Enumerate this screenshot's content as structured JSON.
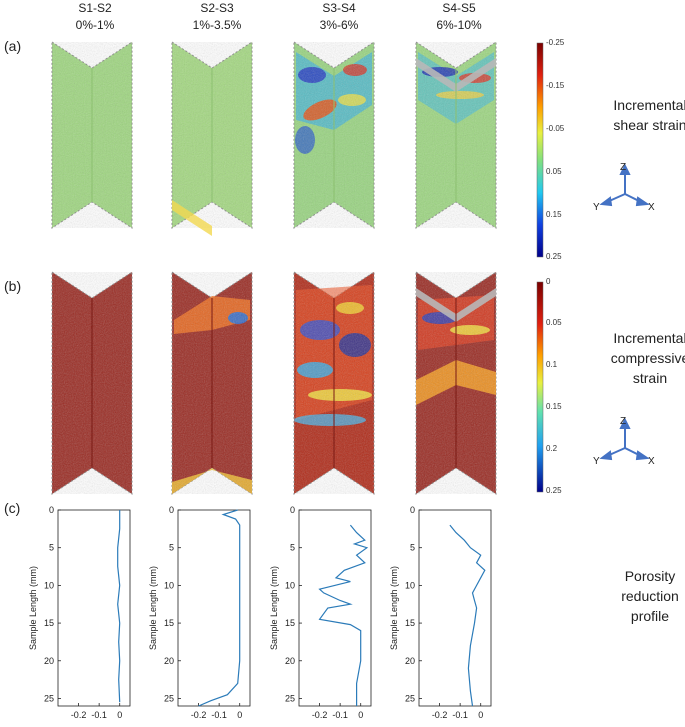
{
  "columns": [
    {
      "id": "S1-S2",
      "range": "0%-1%"
    },
    {
      "id": "S2-S3",
      "range": "1%-3.5%"
    },
    {
      "id": "S3-S4",
      "range": "3%-6%"
    },
    {
      "id": "S4-S5",
      "range": "6%-10%"
    }
  ],
  "rows": [
    {
      "label": "(a)",
      "desc": [
        "Incremental",
        "shear strain"
      ]
    },
    {
      "label": "(b)",
      "desc": [
        "Incremental",
        "compressive",
        "strain"
      ]
    },
    {
      "label": "(c)",
      "desc": [
        "Porosity",
        "reduction",
        "profile"
      ]
    }
  ],
  "colorbar_a": {
    "ticks": [
      "-0.25",
      "-0.15",
      "-0.05",
      "0.05",
      "0.15",
      "0.25"
    ]
  },
  "colorbar_b": {
    "ticks": [
      "0",
      "0.05",
      "0.1",
      "0.15",
      "0.2",
      "0.25"
    ]
  },
  "axes_triad": {
    "z": "Z",
    "y": "Y",
    "x": "X",
    "color": "#4472c4"
  },
  "plots": {
    "ylabel": "Sample Length (mm)",
    "yticks": [
      "0",
      "5",
      "10",
      "15",
      "20",
      "25"
    ],
    "line_color": "#2b7bb9",
    "panels": [
      {
        "xticks": [
          "-0.2",
          "-0.1",
          "0"
        ]
      },
      {
        "xticks": [
          "-0.2",
          "-0.1",
          "0"
        ]
      },
      {
        "xticks": [
          "-0.2",
          "-0.1",
          "0"
        ]
      },
      {
        "xticks": [
          "-0.2",
          "-0.1",
          "0"
        ]
      }
    ]
  },
  "chart_data": [
    {
      "type": "line",
      "x": [
        0,
        0,
        -0.01,
        -0.01,
        0,
        -0.01,
        0,
        -0.005,
        0,
        -0.005,
        0
      ],
      "y": [
        0,
        2.5,
        5,
        7.5,
        10,
        12.5,
        15,
        17.5,
        20,
        22.5,
        25.5
      ],
      "xlim": [
        -0.3,
        0.05
      ],
      "ylim": [
        0,
        26
      ]
    },
    {
      "type": "line",
      "x": [
        -0.01,
        -0.08,
        -0.02,
        0,
        0,
        0,
        0,
        0,
        0,
        0,
        -0.01,
        -0.06,
        -0.14,
        -0.2
      ],
      "y": [
        0,
        0.6,
        1.2,
        2,
        5,
        8,
        11,
        14,
        17,
        20,
        23,
        24.5,
        25.3,
        26
      ],
      "xlim": [
        -0.3,
        0.05
      ],
      "ylim": [
        0,
        26
      ]
    },
    {
      "type": "line",
      "x": [
        -0.05,
        -0.02,
        0.02,
        -0.03,
        0.03,
        -0.02,
        0.02,
        -0.08,
        -0.12,
        -0.05,
        -0.2,
        -0.18,
        -0.1,
        -0.05,
        -0.16,
        -0.2,
        -0.05,
        0,
        0,
        0,
        -0.02,
        -0.02
      ],
      "y": [
        2,
        3,
        4,
        4.5,
        5,
        6,
        7,
        8,
        9,
        9.5,
        10.5,
        11,
        12,
        12.5,
        13,
        14.5,
        15.2,
        16,
        18,
        20,
        23,
        26
      ],
      "xlim": [
        -0.3,
        0.05
      ],
      "ylim": [
        0,
        26
      ]
    },
    {
      "type": "line",
      "x": [
        -0.15,
        -0.12,
        -0.08,
        -0.05,
        0,
        -0.02,
        0.02,
        0,
        -0.02,
        -0.04,
        -0.03,
        -0.02,
        -0.03,
        -0.05,
        -0.06,
        -0.05,
        -0.04
      ],
      "y": [
        2,
        3,
        4,
        5,
        6,
        7,
        8,
        9,
        10,
        11,
        12,
        13,
        15,
        18,
        21,
        24,
        26
      ],
      "xlim": [
        -0.3,
        0.05
      ],
      "ylim": [
        0,
        26
      ]
    }
  ]
}
